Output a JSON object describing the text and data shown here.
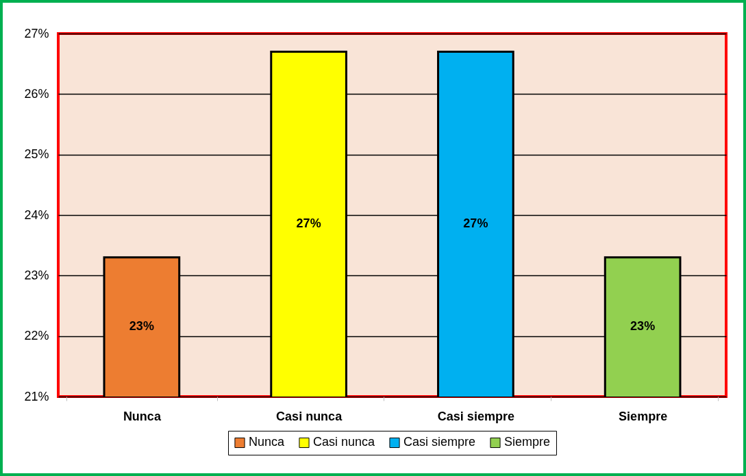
{
  "chart_data": {
    "type": "bar",
    "stacked": true,
    "categories": [
      "Nunca",
      "Casi nunca",
      "Casi siempre",
      "Siempre"
    ],
    "series": [
      {
        "name": "Nunca",
        "color": "#ed7d31",
        "values": [
          23.3,
          null,
          null,
          null
        ],
        "value_labels": [
          "23%",
          null,
          null,
          null
        ]
      },
      {
        "name": "Casi nunca",
        "color": "#ffff00",
        "values": [
          null,
          26.7,
          null,
          null
        ],
        "value_labels": [
          null,
          "27%",
          null,
          null
        ]
      },
      {
        "name": "Casi siempre",
        "color": "#00b0f0",
        "values": [
          null,
          null,
          26.7,
          null
        ],
        "value_labels": [
          null,
          null,
          "27%",
          null
        ]
      },
      {
        "name": "Siempre",
        "color": "#92d050",
        "values": [
          null,
          null,
          null,
          23.3
        ],
        "value_labels": [
          null,
          null,
          null,
          "23%"
        ]
      }
    ],
    "ylim": [
      21,
      27
    ],
    "yticks": [
      {
        "value": 21,
        "label": "21%"
      },
      {
        "value": 22,
        "label": "22%"
      },
      {
        "value": 23,
        "label": "23%"
      },
      {
        "value": 24,
        "label": "24%"
      },
      {
        "value": 25,
        "label": "25%"
      },
      {
        "value": 26,
        "label": "26%"
      },
      {
        "value": 27,
        "label": "27%"
      }
    ],
    "grid": "y",
    "legend": "bottom"
  }
}
